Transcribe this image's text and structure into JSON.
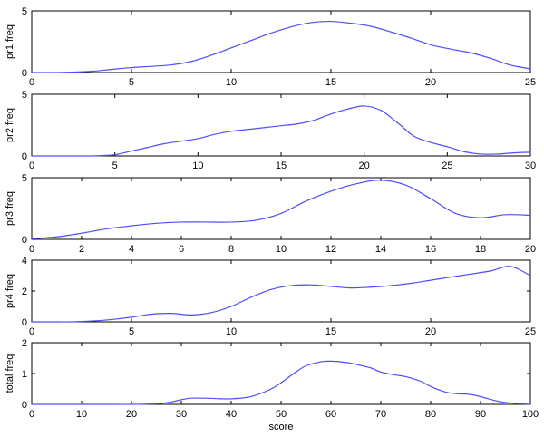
{
  "chart_data": [
    {
      "type": "line",
      "ylabel": "pr1 freq",
      "xlim": [
        0,
        25
      ],
      "ylim": [
        0,
        5
      ],
      "xticks": [
        0,
        5,
        10,
        15,
        20,
        25
      ],
      "yticks": [
        0,
        5
      ],
      "color": "#4d4dff",
      "x": [
        0,
        1,
        2,
        3,
        4,
        5,
        6,
        7,
        8,
        9,
        10,
        11,
        12,
        13,
        14,
        15,
        16,
        17,
        18,
        19,
        20,
        21,
        22,
        23,
        24,
        25
      ],
      "y": [
        0.0,
        0.0,
        0.03,
        0.1,
        0.25,
        0.4,
        0.5,
        0.62,
        0.9,
        1.4,
        2.0,
        2.6,
        3.2,
        3.7,
        4.05,
        4.15,
        4.0,
        3.75,
        3.3,
        2.8,
        2.25,
        1.9,
        1.6,
        1.15,
        0.6,
        0.3
      ]
    },
    {
      "type": "line",
      "ylabel": "pr2 freq",
      "xlim": [
        0,
        30
      ],
      "ylim": [
        0,
        5
      ],
      "xticks": [
        0,
        5,
        10,
        15,
        20,
        25,
        30
      ],
      "yticks": [
        0,
        5
      ],
      "color": "#4d4dff",
      "x": [
        0,
        2,
        3,
        4,
        5,
        6,
        7,
        8,
        9,
        10,
        11,
        12,
        13,
        14,
        15,
        16,
        17,
        18,
        19,
        20,
        21,
        22,
        23,
        24,
        25,
        26,
        27,
        28,
        29,
        30
      ],
      "y": [
        0.0,
        0.0,
        0.0,
        0.02,
        0.1,
        0.4,
        0.7,
        1.0,
        1.2,
        1.4,
        1.75,
        2.0,
        2.15,
        2.3,
        2.45,
        2.6,
        2.9,
        3.4,
        3.8,
        4.05,
        3.7,
        2.7,
        1.6,
        1.1,
        0.75,
        0.35,
        0.15,
        0.15,
        0.25,
        0.3
      ]
    },
    {
      "type": "line",
      "ylabel": "pr3 freq",
      "xlim": [
        0,
        20
      ],
      "ylim": [
        0,
        5
      ],
      "xticks": [
        0,
        2,
        4,
        6,
        8,
        10,
        12,
        14,
        16,
        18,
        20
      ],
      "yticks": [
        0,
        5
      ],
      "color": "#4d4dff",
      "x": [
        0,
        1,
        2,
        3,
        4,
        5,
        6,
        7,
        8,
        9,
        10,
        11,
        12,
        13,
        14,
        15,
        16,
        17,
        18,
        19,
        20
      ],
      "y": [
        0.05,
        0.2,
        0.5,
        0.85,
        1.1,
        1.3,
        1.4,
        1.4,
        1.4,
        1.55,
        2.1,
        3.1,
        3.9,
        4.5,
        4.8,
        4.4,
        3.3,
        2.1,
        1.75,
        2.0,
        1.95
      ]
    },
    {
      "type": "line",
      "ylabel": "pr4 freq",
      "xlim": [
        0,
        25
      ],
      "ylim": [
        0,
        4
      ],
      "xticks": [
        0,
        5,
        10,
        15,
        20,
        25
      ],
      "yticks": [
        0,
        2,
        4
      ],
      "color": "#4d4dff",
      "x": [
        0,
        1,
        2,
        3,
        4,
        5,
        6,
        7,
        8,
        9,
        10,
        11,
        12,
        13,
        14,
        15,
        16,
        17,
        18,
        19,
        20,
        21,
        22,
        23,
        24,
        25
      ],
      "y": [
        0.0,
        0.0,
        0.0,
        0.05,
        0.15,
        0.3,
        0.5,
        0.55,
        0.45,
        0.6,
        1.0,
        1.6,
        2.1,
        2.35,
        2.4,
        2.3,
        2.2,
        2.25,
        2.35,
        2.5,
        2.7,
        2.9,
        3.1,
        3.3,
        3.6,
        3.0
      ]
    },
    {
      "type": "line",
      "ylabel": "total freq",
      "xlabel": "score",
      "xlim": [
        0,
        100
      ],
      "ylim": [
        0,
        2
      ],
      "xticks": [
        0,
        10,
        20,
        30,
        40,
        50,
        60,
        70,
        80,
        90,
        100
      ],
      "yticks": [
        0,
        1,
        2
      ],
      "color": "#4d4dff",
      "x": [
        0,
        5,
        10,
        15,
        20,
        25,
        28,
        30,
        32,
        35,
        38,
        40,
        43,
        45,
        48,
        50,
        53,
        55,
        58,
        60,
        63,
        65,
        68,
        70,
        73,
        75,
        78,
        80,
        83,
        85,
        88,
        90,
        93,
        95,
        98,
        100
      ],
      "y": [
        0,
        0,
        0,
        0,
        0,
        0.02,
        0.08,
        0.15,
        0.2,
        0.2,
        0.18,
        0.18,
        0.22,
        0.3,
        0.5,
        0.7,
        1.05,
        1.25,
        1.38,
        1.4,
        1.36,
        1.3,
        1.18,
        1.05,
        0.95,
        0.9,
        0.75,
        0.58,
        0.4,
        0.35,
        0.32,
        0.25,
        0.12,
        0.06,
        0.02,
        0.0
      ]
    }
  ]
}
